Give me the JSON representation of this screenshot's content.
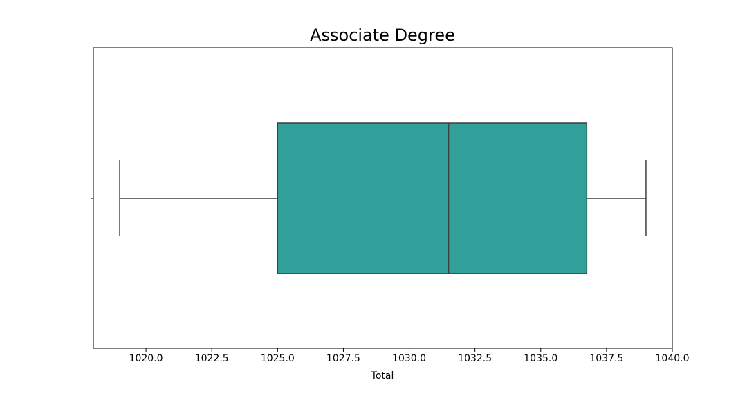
{
  "chart_data": {
    "type": "box",
    "title": "Associate Degree",
    "xlabel": "Total",
    "ylabel": "",
    "xlim": [
      1018.0,
      1040.0
    ],
    "xticks": [
      1020.0,
      1022.5,
      1025.0,
      1027.5,
      1030.0,
      1032.5,
      1035.0,
      1037.5,
      1040.0
    ],
    "xtick_labels": [
      "1020.0",
      "1022.5",
      "1025.0",
      "1027.5",
      "1030.0",
      "1032.5",
      "1035.0",
      "1037.5",
      "1040.0"
    ],
    "grid": false,
    "box": {
      "whisker_low": 1019.0,
      "q1": 1025.0,
      "median": 1031.5,
      "q3": 1036.75,
      "whisker_high": 1039.0,
      "color": "#31a09a",
      "edge_color": "#3f3f3f"
    }
  }
}
